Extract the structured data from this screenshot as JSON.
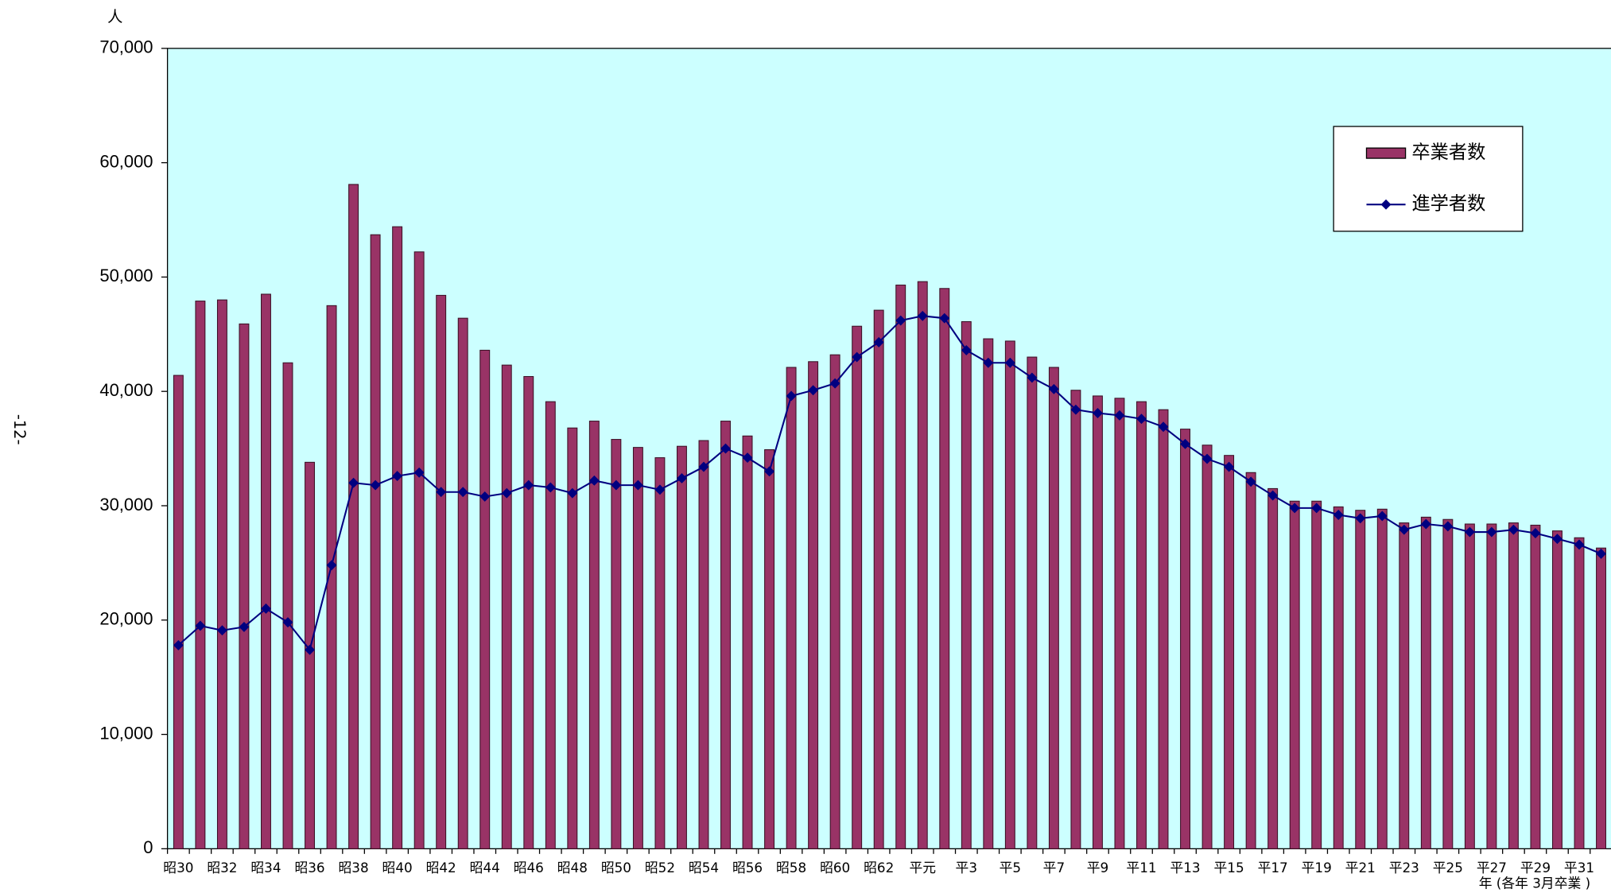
{
  "page_note": "-12-",
  "chart_data": {
    "type": "bar",
    "y_label": "人",
    "x_label": "年 (各年 3月卒業 )",
    "categories": [
      "昭30",
      null,
      "昭32",
      null,
      "昭34",
      null,
      "昭36",
      null,
      "昭38",
      null,
      "昭40",
      null,
      "昭42",
      null,
      "昭44",
      null,
      "昭46",
      null,
      "昭48",
      null,
      "昭50",
      null,
      "昭52",
      null,
      "昭54",
      null,
      "昭56",
      null,
      "昭58",
      null,
      "昭60",
      null,
      "昭62",
      null,
      "平元",
      null,
      "平3",
      null,
      "平5",
      null,
      "平7",
      null,
      "平9",
      null,
      "平11",
      null,
      "平13",
      null,
      "平15",
      null,
      "平17",
      null,
      "平19",
      null,
      "平21",
      null,
      "平23",
      null,
      "平25",
      null,
      "平27",
      null,
      "平29",
      null,
      "平31",
      null
    ],
    "series": [
      {
        "name": "卒業者数",
        "type": "bar",
        "color": "#993366",
        "values": [
          41400,
          47900,
          48000,
          45900,
          48500,
          42500,
          33800,
          47500,
          58100,
          53700,
          54400,
          52200,
          48400,
          46400,
          43600,
          42300,
          41300,
          39100,
          36800,
          37400,
          35800,
          35100,
          34200,
          35200,
          35700,
          37400,
          36100,
          34900,
          42100,
          42600,
          43200,
          45700,
          47100,
          49300,
          49600,
          49000,
          46100,
          44600,
          44400,
          43000,
          42100,
          40100,
          39600,
          39400,
          39100,
          38400,
          36700,
          35300,
          34400,
          32900,
          31500,
          30400,
          30400,
          29900,
          29600,
          29700,
          28500,
          29000,
          28800,
          28400,
          28400,
          28500,
          28300,
          27800,
          27200,
          26300
        ]
      },
      {
        "name": "進学者数",
        "type": "line",
        "color": "#000080",
        "values": [
          17800,
          19500,
          19100,
          19400,
          21000,
          19800,
          17400,
          24800,
          32000,
          31800,
          32600,
          32900,
          31200,
          31200,
          30800,
          31100,
          31800,
          31600,
          31100,
          32200,
          31800,
          31800,
          31400,
          32400,
          33400,
          35000,
          34200,
          33000,
          39600,
          40100,
          40700,
          43000,
          44300,
          46200,
          46600,
          46400,
          43600,
          42500,
          42500,
          41200,
          40200,
          38400,
          38100,
          37900,
          37600,
          36900,
          35400,
          34100,
          33400,
          32100,
          30900,
          29800,
          29800,
          29200,
          28900,
          29100,
          27900,
          28400,
          28200,
          27700,
          27700,
          27900,
          27600,
          27100,
          26600,
          25800
        ]
      }
    ],
    "ylim": [
      0,
      70000
    ],
    "yticks": [
      0,
      {
        "value": 10000,
        "label": "10,000"
      },
      {
        "value": 20000,
        "label": "20,000"
      },
      {
        "value": 30000,
        "label": "30,000"
      },
      {
        "value": 40000,
        "label": "40,000"
      },
      {
        "value": 50000,
        "label": "50,000"
      },
      {
        "value": 60000,
        "label": "60,000"
      },
      {
        "value": 70000,
        "label": "70,000"
      }
    ],
    "plot_background": "#ccffff",
    "legend": "upper right"
  }
}
